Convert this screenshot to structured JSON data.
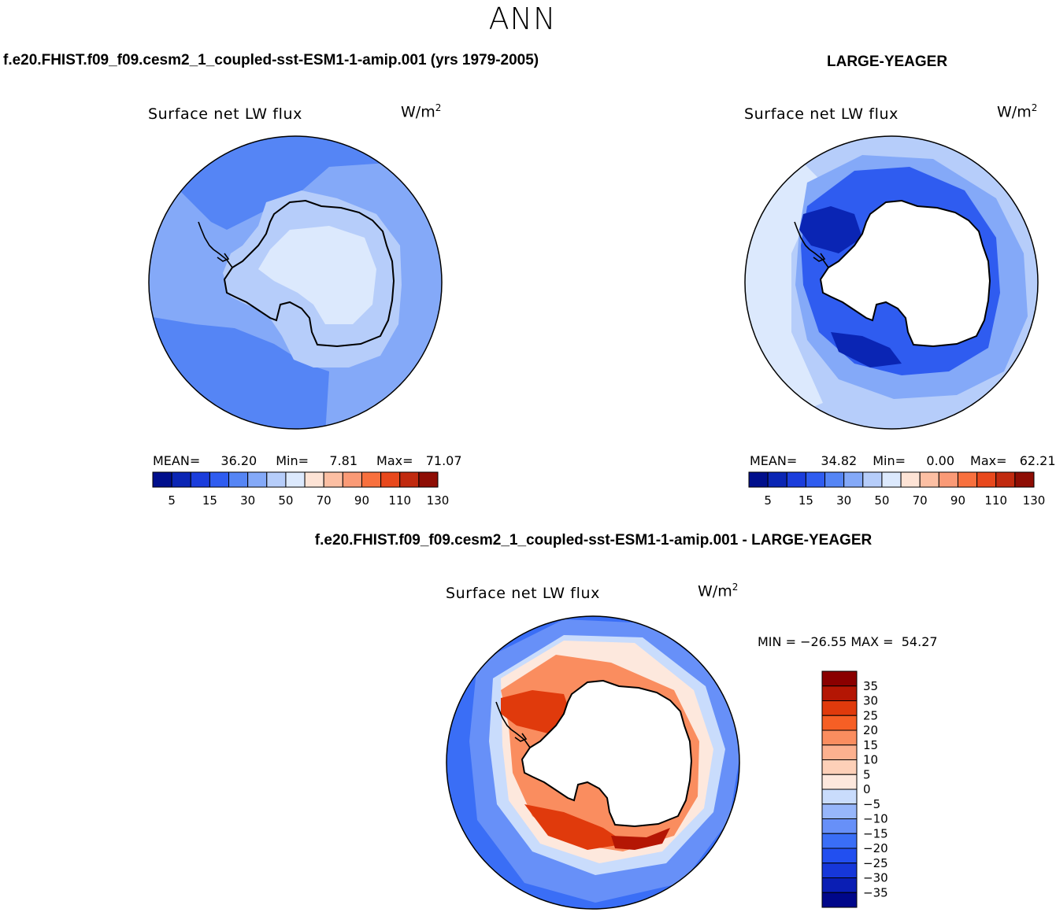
{
  "season": "ANN",
  "panels": {
    "test": {
      "case_title": "f.e20.FHIST.f09_f09.cesm2_1_coupled-sst-ESM1-1-amip.001 (yrs 1979-2005)",
      "var_title": "Surface net LW flux",
      "units": "W/m",
      "units_exp": "2",
      "stats": {
        "mean_label": "MEAN=",
        "mean": "36.20",
        "min_label": "Min=",
        "min": "7.81",
        "max_label": "Max=",
        "max": "71.07"
      }
    },
    "obs": {
      "case_title": "LARGE-YEAGER",
      "var_title": "Surface net LW flux",
      "units": "W/m",
      "units_exp": "2",
      "stats": {
        "mean_label": "MEAN=",
        "mean": "34.82",
        "min_label": "Min=",
        "min": "0.00",
        "max_label": "Max=",
        "max": "62.21"
      }
    },
    "diff": {
      "case_title": "f.e20.FHIST.f09_f09.cesm2_1_coupled-sst-ESM1-1-amip.001 - LARGE-YEAGER",
      "var_title": "Surface net LW flux",
      "units": "W/m",
      "units_exp": "2",
      "minmax": "MIN = −26.55 MAX =  54.27"
    }
  },
  "abs_colorbar": {
    "colors": [
      "#000f8c",
      "#0a25b4",
      "#1b3ddc",
      "#2f5cf0",
      "#5585f5",
      "#84a9f8",
      "#b6cdfa",
      "#dce9fd",
      "#fde3d5",
      "#fcbfa3",
      "#fa9a76",
      "#f8703e",
      "#e8481c",
      "#c12a0f",
      "#8e0d04"
    ],
    "tick_labels": [
      "5",
      "15",
      "30",
      "50",
      "70",
      "90",
      "110",
      "130"
    ]
  },
  "diff_colorbar": {
    "colors": [
      "#00078a",
      "#0a1eb4",
      "#1637d9",
      "#224ff0",
      "#3a6ef6",
      "#6790f8",
      "#97b6fa",
      "#c9dcfc",
      "#fde8dd",
      "#fdd0b8",
      "#fcb18f",
      "#fa8d5f",
      "#f65f25",
      "#e03a0c",
      "#b41604",
      "#8a0000"
    ],
    "tick_labels": [
      "35",
      "30",
      "25",
      "20",
      "15",
      "10",
      "5",
      "0",
      "−5",
      "−10",
      "−15",
      "−20",
      "−25",
      "−30",
      "−35"
    ]
  },
  "map_colors": {
    "ocean_base_test": "#84a9f8",
    "ocean_mid_test": "#5585f5",
    "ice_test": "#b6cdfa",
    "interior_test": "#dce9fd",
    "ocean_base_obs": "#b6cdfa",
    "ocean_outer_obs": "#dce9fd",
    "ocean_mid_obs": "#84a9f8",
    "ocean_deep_obs": "#2f5cf0",
    "ocean_core_obs": "#0a25b4",
    "land": "#ffffff",
    "diff_outer": "#3a6ef6",
    "diff_mid": "#6790f8",
    "diff_light": "#c9dcfc",
    "diff_ring": "#fde8dd",
    "diff_warm": "#fa8d5f",
    "diff_hot": "#e03a0c",
    "diff_core": "#b41604"
  }
}
